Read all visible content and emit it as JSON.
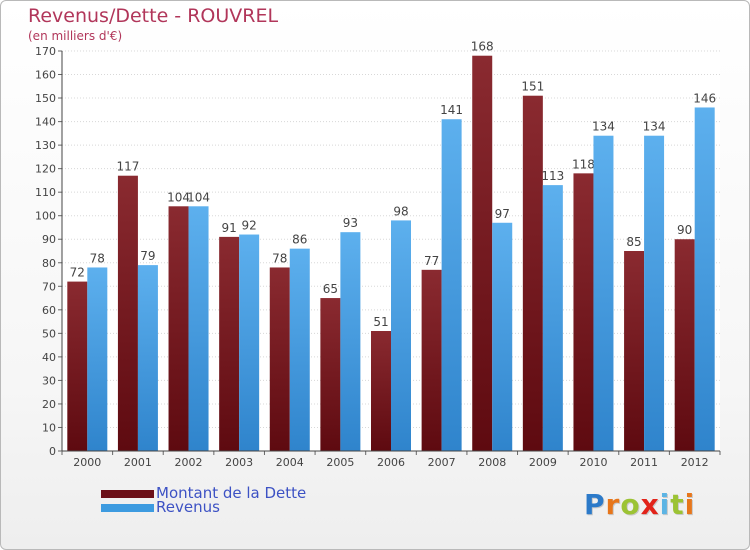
{
  "title": "Revenus/Dette - ROUVREL",
  "subtitle": "(en milliers d'€)",
  "legend": [
    {
      "label": "Montant de la Dette",
      "color": "#6b0f17"
    },
    {
      "label": "Revenus",
      "color": "#3d9be0"
    }
  ],
  "brand": {
    "text": "Proxiti",
    "letters": [
      "P",
      "r",
      "o",
      "x",
      "i",
      "t",
      "i"
    ],
    "colors": [
      "#2c7ac9",
      "#e7761b",
      "#9cc334",
      "#e2231a",
      "#5cb4e4",
      "#9cc334",
      "#e7761b"
    ]
  },
  "chart_data": {
    "type": "bar",
    "title": "Revenus/Dette - ROUVREL",
    "subtitle": "(en milliers d'€)",
    "categories": [
      "2000",
      "2001",
      "2002",
      "2003",
      "2004",
      "2005",
      "2006",
      "2007",
      "2008",
      "2009",
      "2010",
      "2011",
      "2012"
    ],
    "series": [
      {
        "name": "Montant de la Dette",
        "values": [
          72,
          117,
          104,
          91,
          78,
          65,
          51,
          77,
          168,
          151,
          118,
          85,
          90
        ],
        "color": "#6b0f17"
      },
      {
        "name": "Revenus",
        "values": [
          78,
          79,
          104,
          92,
          86,
          93,
          98,
          141,
          97,
          113,
          134,
          134,
          146
        ],
        "color": "#3d9be0"
      }
    ],
    "ylim": [
      0,
      170
    ],
    "ytick_step": 10,
    "grid": true,
    "legend_position": "bottom-left"
  }
}
